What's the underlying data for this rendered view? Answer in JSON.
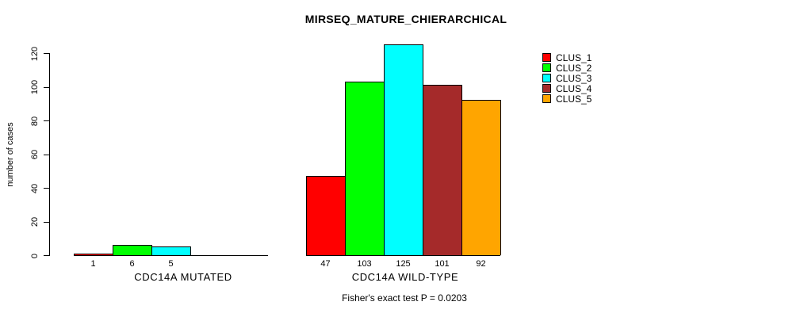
{
  "chart_data": {
    "type": "bar",
    "title": "MIRSEQ_MATURE_CHIERARCHICAL",
    "ylabel": "number of cases",
    "xlabel": "",
    "categories": [
      "CDC14A MUTATED",
      "CDC14A WILD-TYPE"
    ],
    "series": [
      {
        "name": "CLUS_1",
        "color": "#FF0000",
        "values": [
          1,
          47
        ]
      },
      {
        "name": "CLUS_2",
        "color": "#00FF00",
        "values": [
          6,
          103
        ]
      },
      {
        "name": "CLUS_3",
        "color": "#00FFFF",
        "values": [
          5,
          125
        ]
      },
      {
        "name": "CLUS_4",
        "color": "#A52A2A",
        "values": [
          0,
          101
        ]
      },
      {
        "name": "CLUS_5",
        "color": "#FFA500",
        "values": [
          0,
          92
        ]
      }
    ],
    "yticks": [
      0,
      20,
      40,
      60,
      80,
      100,
      120
    ],
    "ylim": [
      0,
      130
    ],
    "grid": false,
    "legend_position": "right-outside-top",
    "bar_value_labels": "shown under each nonzero bar",
    "annotation": "Fisher's exact test P = 0.0203",
    "axis_color": "#000000",
    "bar_border_color": "#000000",
    "background_color": "#FFFFFF"
  }
}
